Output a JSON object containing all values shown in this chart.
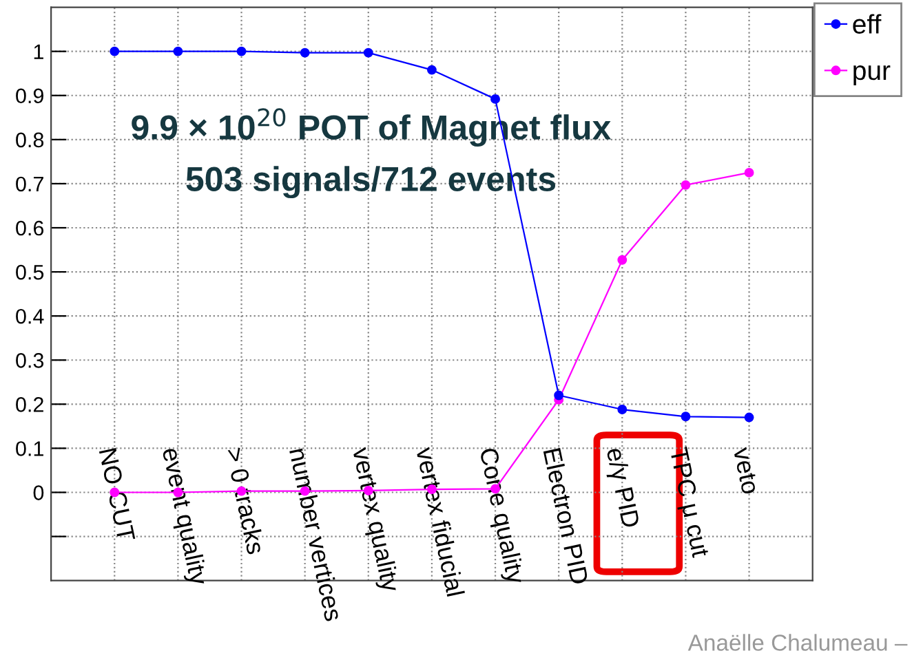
{
  "chart_data": {
    "type": "line",
    "categories": [
      "NO CUT",
      "event quality",
      "> 0 tracks",
      "number vertices",
      "vertex quality",
      "vertex fiducial",
      "Cone quality",
      "Electron PID",
      "e/γ PID",
      "TPC μ cut",
      "veto"
    ],
    "series": [
      {
        "name": "eff",
        "color": "#0000ff",
        "values": [
          1.0,
          1.0,
          1.0,
          0.997,
          0.997,
          0.958,
          0.892,
          0.22,
          0.188,
          0.172,
          0.17
        ]
      },
      {
        "name": "pur",
        "color": "#ff00ff",
        "values": [
          0.0,
          0.0,
          0.003,
          0.003,
          0.004,
          0.007,
          0.008,
          0.21,
          0.527,
          0.697,
          0.725
        ]
      }
    ],
    "ylim": [
      -0.2,
      1.1
    ],
    "yticks": [
      {
        "value": -0.1,
        "label": null
      },
      0,
      0.1,
      0.2,
      0.3,
      0.4,
      0.5,
      0.6,
      0.7,
      0.8,
      0.9,
      1
    ],
    "grid": true,
    "legend": "top right",
    "marker": "circle",
    "line_style": "solid",
    "annotations": [
      "9.9 × 10$^{20}$ POT of Magnet flux",
      "503 signals/712 events",
      "Anaëlle Chalumeau –"
    ]
  }
}
